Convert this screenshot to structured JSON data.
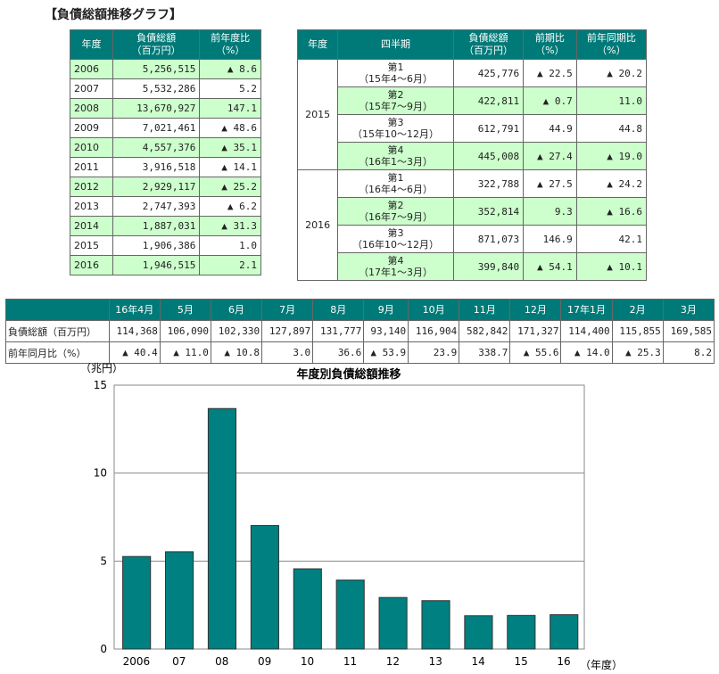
{
  "title": "【負債総額推移グラフ】",
  "annual_table": {
    "headers": [
      "年度",
      "負債総額\n（百万円）",
      "前年度比\n（%）"
    ],
    "rows": [
      [
        "2006",
        "5,256,515",
        "▲ 8.6"
      ],
      [
        "2007",
        "5,532,286",
        "5.2"
      ],
      [
        "2008",
        "13,670,927",
        "147.1"
      ],
      [
        "2009",
        "7,021,461",
        "▲ 48.6"
      ],
      [
        "2010",
        "4,557,376",
        "▲ 35.1"
      ],
      [
        "2011",
        "3,916,518",
        "▲ 14.1"
      ],
      [
        "2012",
        "2,929,117",
        "▲ 25.2"
      ],
      [
        "2013",
        "2,747,393",
        "▲ 6.2"
      ],
      [
        "2014",
        "1,887,031",
        "▲ 31.3"
      ],
      [
        "2015",
        "1,906,386",
        "1.0"
      ],
      [
        "2016",
        "1,946,515",
        "2.1"
      ]
    ]
  },
  "quarter_table": {
    "headers": [
      "年度",
      "四半期",
      "負債総額\n（百万円）",
      "前期比\n（%）",
      "前年同期比\n（%）"
    ],
    "groups": [
      {
        "year": "2015",
        "rows": [
          [
            "第1\n（15年4～6月）",
            "425,776",
            "▲ 22.5",
            "▲ 20.2"
          ],
          [
            "第2\n（15年7～9月）",
            "422,811",
            "▲ 0.7",
            "11.0"
          ],
          [
            "第3\n（15年10～12月）",
            "612,791",
            "44.9",
            "44.8"
          ],
          [
            "第4\n（16年1～3月）",
            "445,008",
            "▲ 27.4",
            "▲ 19.0"
          ]
        ]
      },
      {
        "year": "2016",
        "rows": [
          [
            "第1\n（16年4～6月）",
            "322,788",
            "▲ 27.5",
            "▲ 24.2"
          ],
          [
            "第2\n（16年7～9月）",
            "352,814",
            "9.3",
            "▲ 16.6"
          ],
          [
            "第3\n（16年10～12月）",
            "871,073",
            "146.9",
            "42.1"
          ],
          [
            "第4\n（17年1～3月）",
            "399,840",
            "▲ 54.1",
            "▲ 10.1"
          ]
        ]
      }
    ]
  },
  "monthly_table": {
    "months": [
      "16年4月",
      "5月",
      "6月",
      "7月",
      "8月",
      "9月",
      "10月",
      "11月",
      "12月",
      "17年1月",
      "2月",
      "3月"
    ],
    "row_labels": [
      "負債総額（百万円）",
      "前年同月比（%）"
    ],
    "amounts": [
      "114,368",
      "106,090",
      "102,330",
      "127,897",
      "131,777",
      "93,140",
      "116,904",
      "582,842",
      "171,327",
      "114,400",
      "115,855",
      "169,585"
    ],
    "yoy": [
      "▲ 40.4",
      "▲ 11.0",
      "▲ 10.8",
      "3.0",
      "36.6",
      "▲ 53.9",
      "23.9",
      "338.7",
      "▲ 55.6",
      "▲ 14.0",
      "▲ 25.3",
      "8.2"
    ]
  },
  "chart_data": {
    "type": "bar",
    "title": "年度別負債総額推移",
    "ylabel": "（兆円）",
    "xlabel": "（年度）",
    "categories": [
      "2006",
      "07",
      "08",
      "09",
      "10",
      "11",
      "12",
      "13",
      "14",
      "15",
      "16"
    ],
    "values": [
      5.26,
      5.53,
      13.67,
      7.02,
      4.56,
      3.92,
      2.93,
      2.75,
      1.89,
      1.91,
      1.95
    ],
    "ylim": [
      0,
      15
    ],
    "yticks": [
      "0",
      "5",
      "10",
      "15"
    ],
    "grid": true,
    "bar_color": "#008080"
  }
}
